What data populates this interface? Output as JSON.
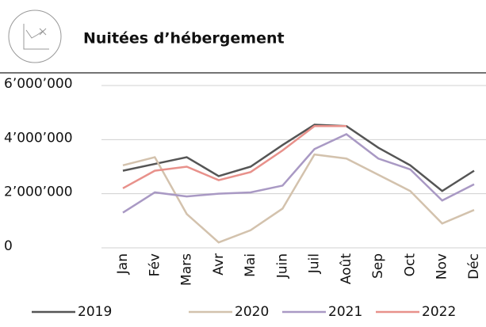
{
  "chart_data": {
    "type": "line",
    "title": "Nuitées d’hébergement",
    "categories": [
      "Jan",
      "Fév",
      "Mars",
      "Avr",
      "Mai",
      "Juin",
      "Juil",
      "Août",
      "Sep",
      "Oct",
      "Nov",
      "Déc"
    ],
    "series": [
      {
        "name": "2019",
        "color": "#555555",
        "values": [
          2850000,
          3100000,
          3350000,
          2650000,
          3000000,
          3800000,
          4550000,
          4500000,
          3700000,
          3050000,
          2100000,
          2850000
        ]
      },
      {
        "name": "2020",
        "color": "#d3c2ad",
        "values": [
          3050000,
          3350000,
          1250000,
          200000,
          650000,
          1450000,
          3450000,
          3300000,
          2700000,
          2100000,
          900000,
          1400000
        ]
      },
      {
        "name": "2021",
        "color": "#a999c4",
        "values": [
          1300000,
          2050000,
          1900000,
          2000000,
          2050000,
          2300000,
          3650000,
          4200000,
          3300000,
          2900000,
          1750000,
          2350000
        ]
      },
      {
        "name": "2022",
        "color": "#e8918b",
        "values": [
          2200000,
          2850000,
          3000000,
          2500000,
          2800000,
          3600000,
          4500000,
          4500000,
          null,
          null,
          null,
          null
        ]
      }
    ],
    "ylim": [
      0,
      6000000
    ],
    "yticks": [
      0,
      {
        "value": 2000000,
        "label": "2’000’000"
      },
      {
        "value": 4000000,
        "label": "4’000’000"
      },
      {
        "value": 6000000,
        "label": "6’000’000"
      }
    ],
    "grid": true
  }
}
